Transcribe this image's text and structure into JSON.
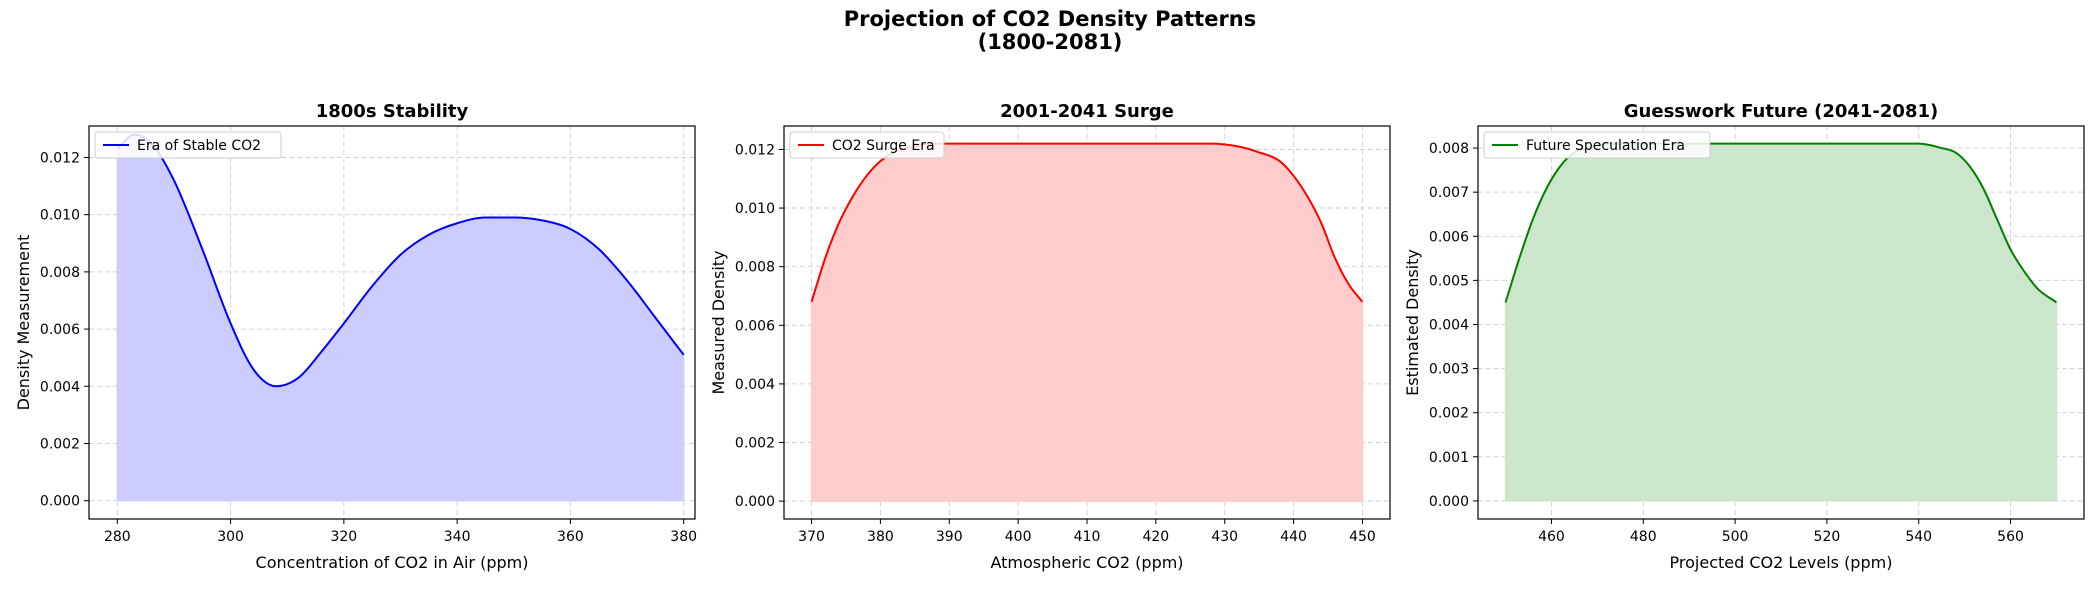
{
  "figure": {
    "title": "Projection of CO2 Density Patterns\n(1800-2081)"
  },
  "chart_data": [
    {
      "type": "area",
      "title": "1800s Stability",
      "xlabel": "Concentration of CO2 in Air (ppm)",
      "ylabel": "Density Measurement",
      "xlim": [
        275,
        382
      ],
      "ylim": [
        -0.00064,
        0.0131
      ],
      "xticks": [
        280,
        300,
        320,
        340,
        360,
        380
      ],
      "yticks": [
        0,
        0.002,
        0.004,
        0.006,
        0.008,
        0.01,
        0.012
      ],
      "xtick_labels": [
        "280",
        "300",
        "320",
        "340",
        "360",
        "380"
      ],
      "ytick_labels": [
        "0.000",
        "0.002",
        "0.004",
        "0.006",
        "0.008",
        "0.010",
        "0.012"
      ],
      "grid": true,
      "legend_position": "upper-left",
      "line_color": "#0000ff",
      "fill_color": "#ccccff",
      "series": [
        {
          "name": "Era of Stable CO2",
          "x": [
            280,
            283,
            286,
            290,
            295,
            300,
            304,
            308,
            312,
            316,
            320,
            325,
            330,
            335,
            340,
            345,
            350,
            355,
            360,
            365,
            370,
            375,
            380
          ],
          "y": [
            0.0123,
            0.0128,
            0.0125,
            0.0112,
            0.0088,
            0.0062,
            0.0046,
            0.004,
            0.0043,
            0.0052,
            0.0062,
            0.0075,
            0.0086,
            0.0093,
            0.0097,
            0.0099,
            0.0099,
            0.0098,
            0.0095,
            0.0088,
            0.0077,
            0.0064,
            0.0051
          ]
        }
      ]
    },
    {
      "type": "area",
      "title": "2001-2041 Surge",
      "xlabel": "Atmospheric CO2 (ppm)",
      "ylabel": "Measured Density",
      "xlim": [
        366,
        454
      ],
      "ylim": [
        -0.00061,
        0.0128
      ],
      "xticks": [
        370,
        380,
        390,
        400,
        410,
        420,
        430,
        440,
        450
      ],
      "yticks": [
        0,
        0.002,
        0.004,
        0.006,
        0.008,
        0.01,
        0.012
      ],
      "xtick_labels": [
        "370",
        "380",
        "390",
        "400",
        "410",
        "420",
        "430",
        "440",
        "450"
      ],
      "ytick_labels": [
        "0.000",
        "0.002",
        "0.004",
        "0.006",
        "0.008",
        "0.010",
        "0.012"
      ],
      "grid": true,
      "legend_position": "upper-left",
      "line_color": "#ff0000",
      "fill_color": "#ffcccc",
      "series": [
        {
          "name": "CO2 Surge Era",
          "x": [
            370,
            372,
            374,
            376,
            378,
            380,
            382,
            385,
            388,
            392,
            396,
            400,
            410,
            420,
            425,
            428,
            432,
            435,
            438,
            440,
            442,
            444,
            446,
            448,
            450
          ],
          "y": [
            0.0068,
            0.0083,
            0.0095,
            0.0104,
            0.0111,
            0.0116,
            0.0119,
            0.0121,
            0.0122,
            0.0122,
            0.0122,
            0.0122,
            0.0122,
            0.0122,
            0.0122,
            0.0122,
            0.0121,
            0.0119,
            0.0116,
            0.0111,
            0.0104,
            0.0095,
            0.0083,
            0.0074,
            0.0068
          ]
        }
      ]
    },
    {
      "type": "area",
      "title": "Guesswork Future (2041-2081)",
      "xlabel": "Projected CO2 Levels (ppm)",
      "ylabel": "Estimated Density",
      "xlim": [
        444,
        576
      ],
      "ylim": [
        -0.00041,
        0.0085
      ],
      "xticks": [
        460,
        480,
        500,
        520,
        540,
        560
      ],
      "yticks": [
        0,
        0.001,
        0.002,
        0.003,
        0.004,
        0.005,
        0.006,
        0.007,
        0.008
      ],
      "xtick_labels": [
        "460",
        "480",
        "500",
        "520",
        "540",
        "560"
      ],
      "ytick_labels": [
        "0.000",
        "0.001",
        "0.002",
        "0.003",
        "0.004",
        "0.005",
        "0.006",
        "0.007",
        "0.008"
      ],
      "grid": true,
      "legend_position": "upper-left",
      "line_color": "#008000",
      "fill_color": "#cce6cc",
      "series": [
        {
          "name": "Future Speculation Era",
          "x": [
            450,
            453,
            456,
            459,
            462,
            465,
            468,
            472,
            476,
            480,
            490,
            500,
            510,
            520,
            530,
            540,
            545,
            548,
            551,
            554,
            557,
            560,
            563,
            566,
            570
          ],
          "y": [
            0.0045,
            0.0055,
            0.0064,
            0.0071,
            0.0076,
            0.0079,
            0.008,
            0.0081,
            0.0081,
            0.0081,
            0.0081,
            0.0081,
            0.0081,
            0.0081,
            0.0081,
            0.0081,
            0.008,
            0.0079,
            0.0076,
            0.0071,
            0.0064,
            0.0057,
            0.0052,
            0.0048,
            0.0045
          ]
        }
      ]
    }
  ]
}
